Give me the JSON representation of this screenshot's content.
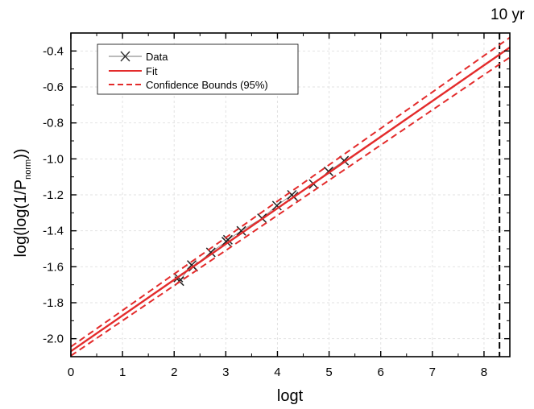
{
  "chart_data": {
    "type": "line",
    "title": "",
    "xlabel": "logt",
    "ylabel_main": "log(log(1/P",
    "ylabel_sub": "norm",
    "ylabel_end": "))",
    "xlim": [
      0,
      8.5
    ],
    "ylim": [
      -2.1,
      -0.3
    ],
    "x_ticks": [
      0,
      1,
      2,
      3,
      4,
      5,
      6,
      7,
      8
    ],
    "y_ticks": [
      -2.0,
      -1.8,
      -1.6,
      -1.4,
      -1.2,
      -1.0,
      -0.8,
      -0.6,
      -0.4
    ],
    "grid": true,
    "legend_position": "top-left",
    "annotation": {
      "text": "10 yr",
      "x": 8.3
    },
    "series": [
      {
        "name": "Data",
        "style": "x-markers-with-line",
        "color": "#333333",
        "x": [
          2.08,
          2.1,
          2.34,
          2.37,
          2.71,
          3.01,
          3.04,
          3.3,
          3.7,
          3.99,
          4.28,
          4.31,
          4.7,
          4.99,
          5.29
        ],
        "y": [
          -1.66,
          -1.68,
          -1.59,
          -1.6,
          -1.52,
          -1.46,
          -1.45,
          -1.4,
          -1.33,
          -1.26,
          -1.2,
          -1.21,
          -1.14,
          -1.07,
          -1.01
        ]
      },
      {
        "name": "Fit",
        "style": "solid",
        "color": "#e32b2b",
        "x": [
          0,
          8.5
        ],
        "y": [
          -2.07,
          -0.38
        ]
      },
      {
        "name": "Confidence Bounds (95%)",
        "style": "dashed",
        "color": "#e32b2b",
        "upper": {
          "x": [
            0,
            8.5
          ],
          "y": [
            -2.045,
            -0.325
          ]
        },
        "lower": {
          "x": [
            0,
            8.5
          ],
          "y": [
            -2.095,
            -0.435
          ]
        }
      }
    ]
  }
}
